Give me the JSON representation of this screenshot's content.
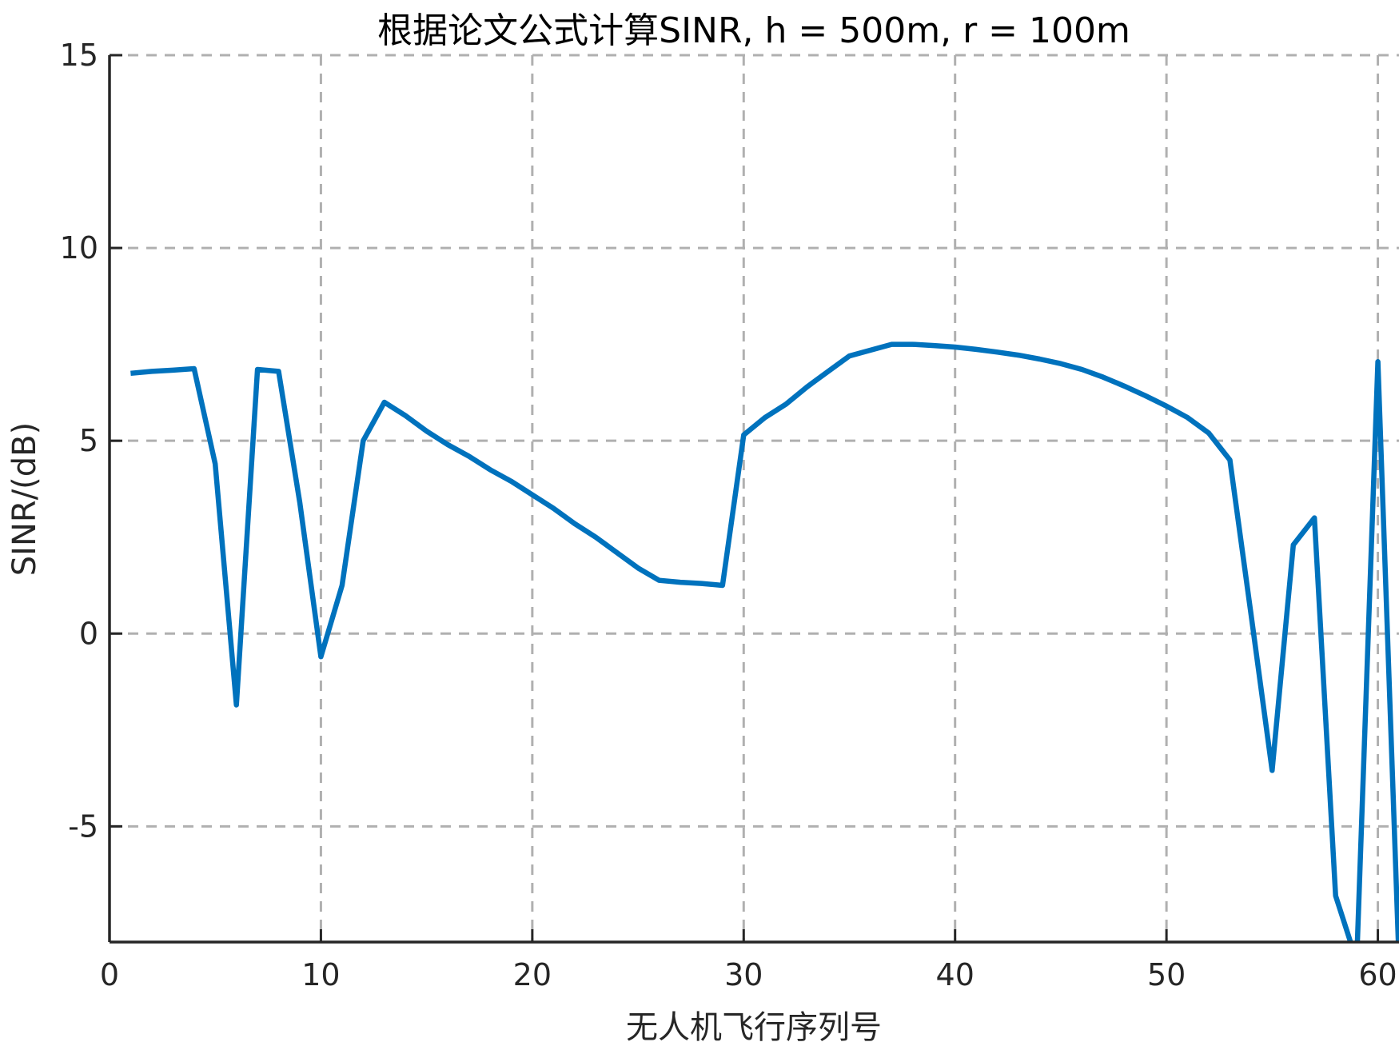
{
  "chart_data": {
    "type": "line",
    "title": "根据论文公式计算SINR, h = 500m, r = 100m",
    "xlabel": "无人机飞行序列号",
    "ylabel": "SINR/(dB)",
    "xlim": [
      0,
      61
    ],
    "ylim": [
      -8,
      15
    ],
    "xticks": [
      0,
      10,
      20,
      30,
      40,
      50,
      60
    ],
    "xtick_labels": [
      "0",
      "10",
      "20",
      "30",
      "40",
      "50",
      "60"
    ],
    "yticks": [
      -5,
      0,
      5,
      10,
      15
    ],
    "ytick_labels": [
      "-5",
      "0",
      "5",
      "10",
      "15"
    ],
    "grid": true,
    "grid_style": "dashed",
    "line_color": "#0072BD",
    "axis_color": "#262626",
    "grid_color": "#b0b0b0",
    "series": [
      {
        "x": [
          1,
          2,
          3,
          4,
          5,
          6,
          7,
          8,
          9,
          10,
          11,
          12,
          13,
          14,
          15,
          16,
          17,
          18,
          19,
          20,
          21,
          22,
          23,
          24,
          25,
          26,
          27,
          28,
          29,
          30,
          31,
          32,
          33,
          34,
          35,
          36,
          37,
          38,
          39,
          40,
          41,
          42,
          43,
          44,
          45,
          46,
          47,
          48,
          49,
          50,
          51,
          52,
          53,
          54,
          55,
          56,
          57,
          58,
          59,
          60,
          61
        ],
        "values": [
          6.75,
          6.8,
          6.83,
          6.87,
          4.4,
          -1.85,
          6.85,
          6.8,
          3.4,
          -0.6,
          1.25,
          5.0,
          6.0,
          5.65,
          5.25,
          4.9,
          4.6,
          4.25,
          3.95,
          3.6,
          3.25,
          2.85,
          2.5,
          2.1,
          1.7,
          1.38,
          1.33,
          1.3,
          1.25,
          5.15,
          5.6,
          5.95,
          6.4,
          6.8,
          7.2,
          7.35,
          7.5,
          7.5,
          7.47,
          7.43,
          7.37,
          7.3,
          7.22,
          7.12,
          7.0,
          6.85,
          6.65,
          6.42,
          6.17,
          5.9,
          5.6,
          5.2,
          4.5,
          0.5,
          -3.55,
          2.3,
          3.0,
          -6.8,
          -8.5,
          7.05,
          -8.5
        ]
      }
    ]
  }
}
